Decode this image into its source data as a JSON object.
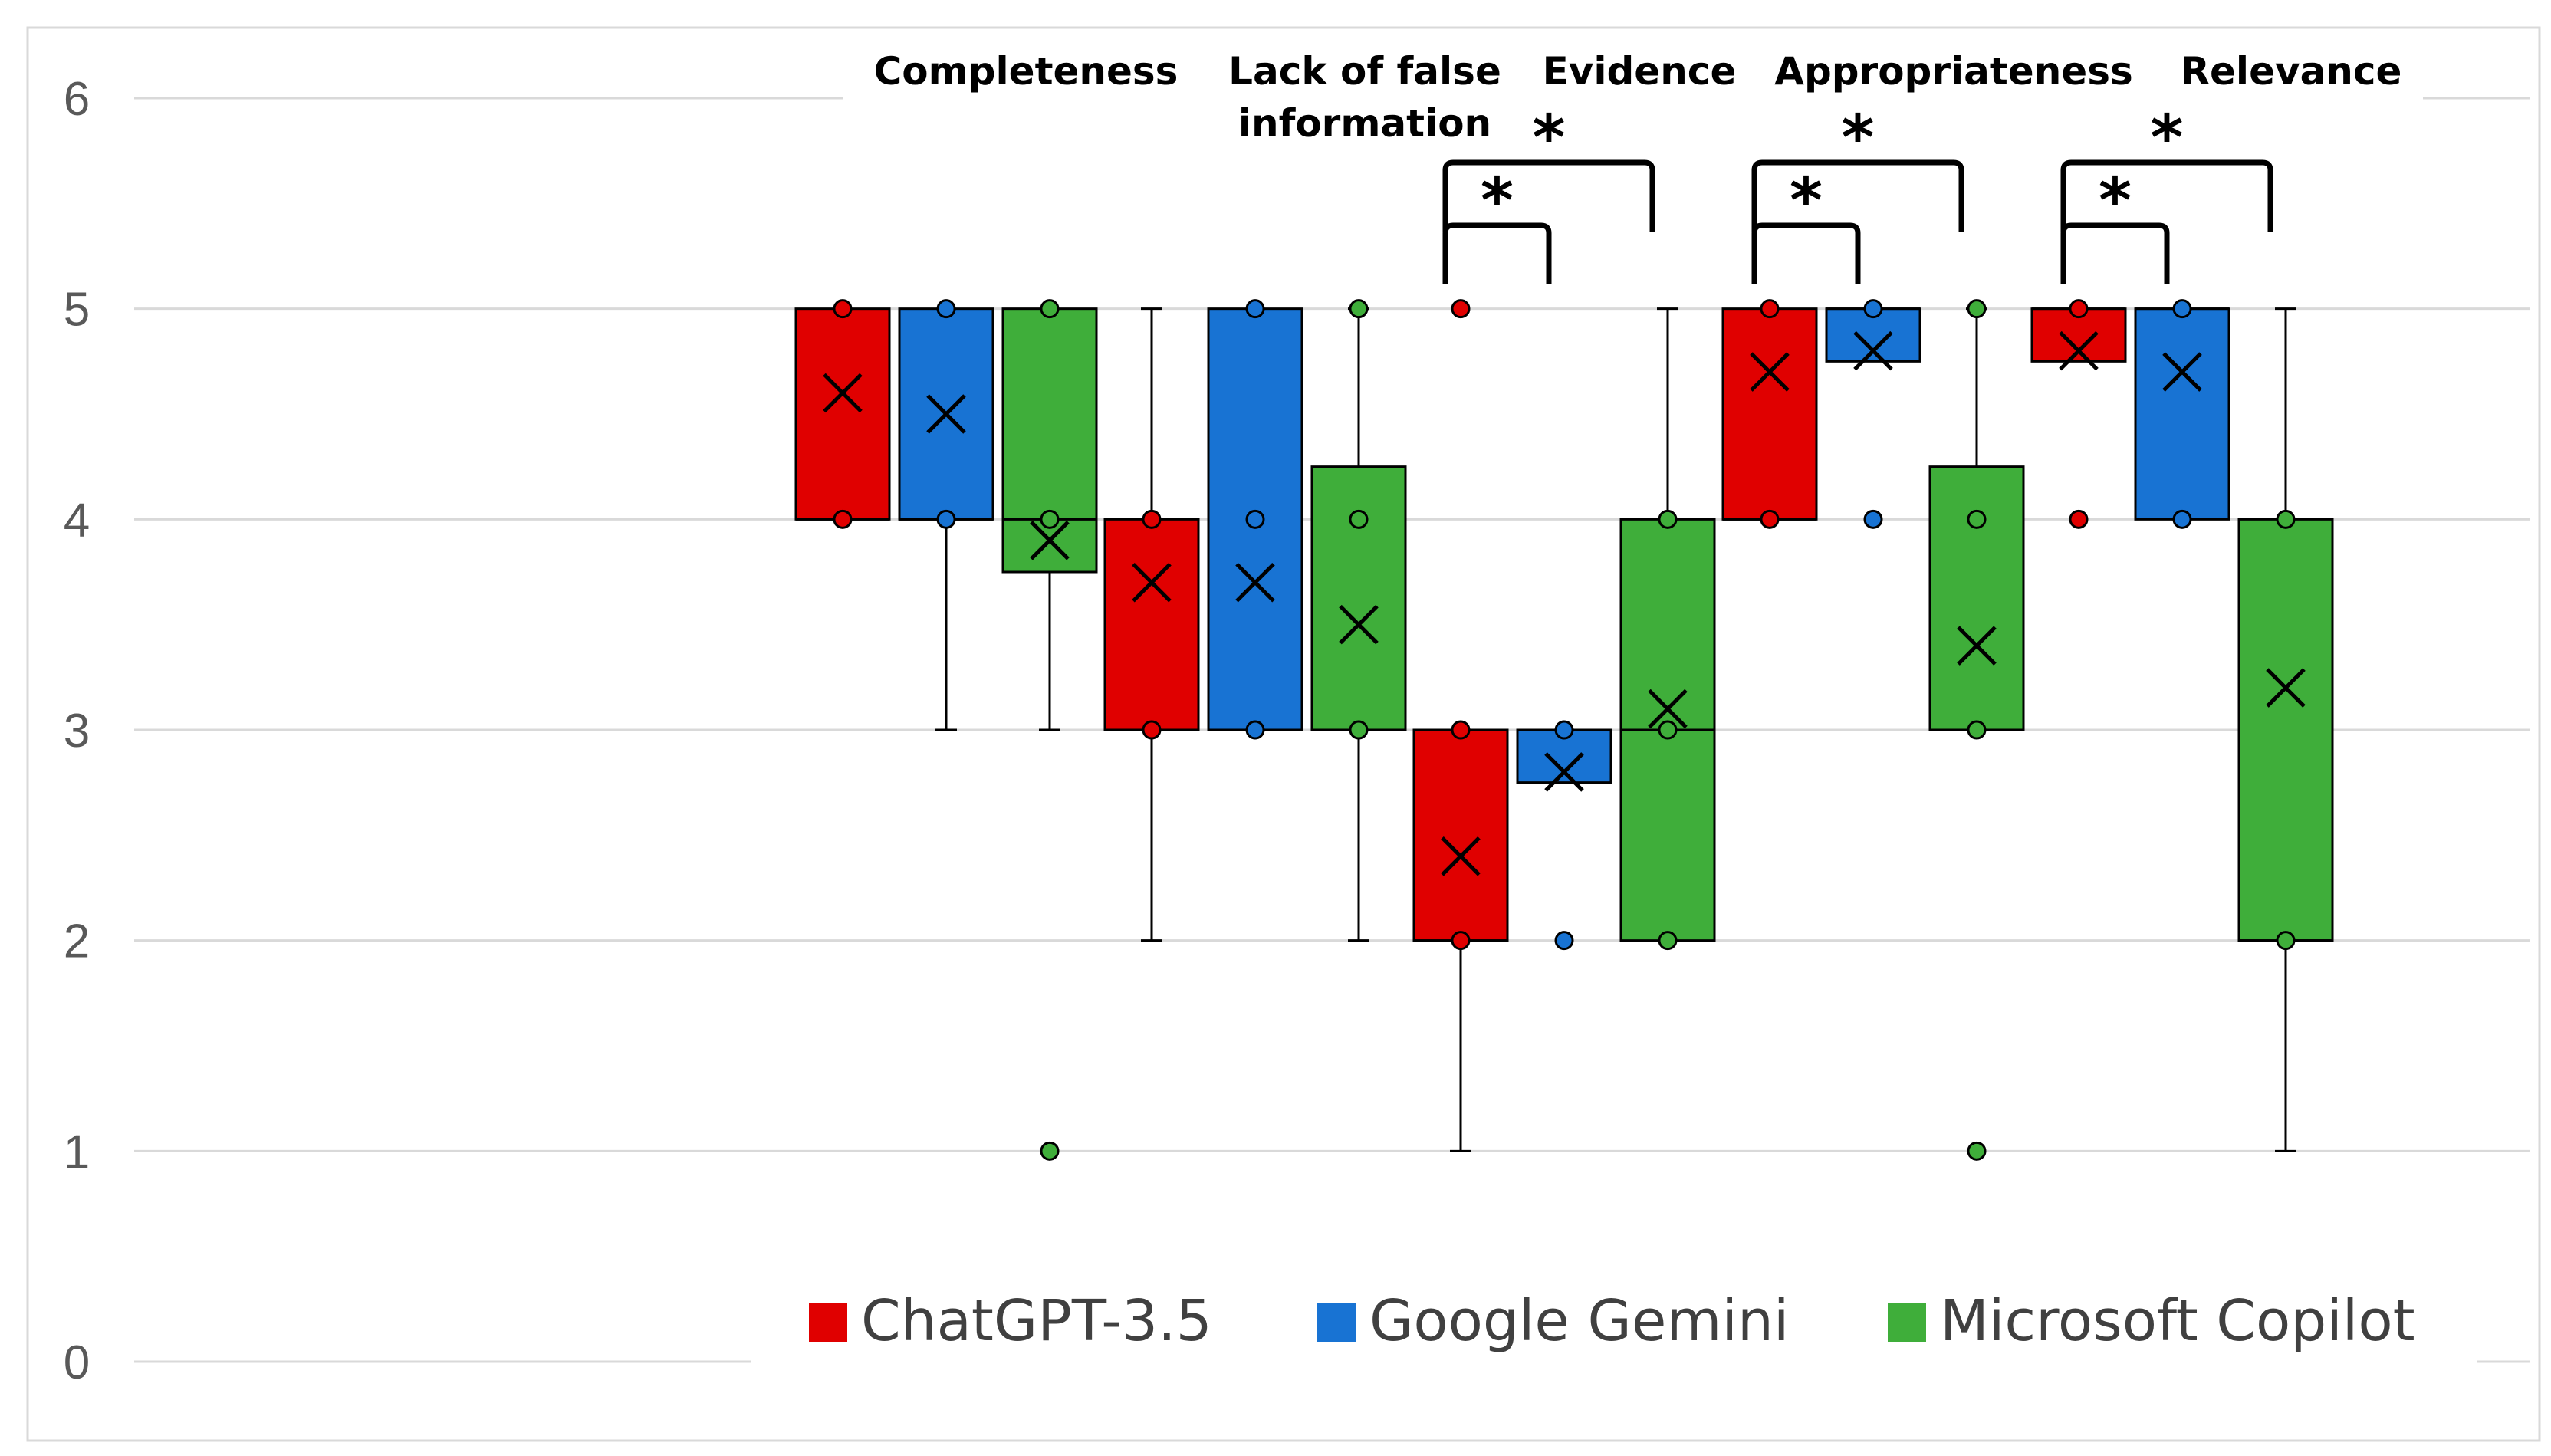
{
  "chart_data": {
    "type": "box",
    "title": "",
    "xlabel": "",
    "ylabel": "",
    "ylim": [
      0,
      6
    ],
    "yticks": [
      0,
      1,
      2,
      3,
      4,
      5,
      6
    ],
    "grid": true,
    "legend_position": "bottom",
    "categories": [
      "Completeness",
      "Lack of false information",
      "Evidence",
      "Appropriateness",
      "Relevance"
    ],
    "category_lines": [
      [
        "Completeness"
      ],
      [
        "Lack of false",
        "information"
      ],
      [
        "Evidence"
      ],
      [
        "Appropriateness"
      ],
      [
        "Relevance"
      ]
    ],
    "series": [
      {
        "name": "ChatGPT-3.5",
        "color": "#e00000",
        "boxes": [
          {
            "min": 4,
            "q1": 4,
            "median": 4,
            "q3": 5,
            "max": 5,
            "mean": 4.6,
            "points": [
              4,
              5
            ]
          },
          {
            "min": 2,
            "q1": 3,
            "median": 3,
            "q3": 4,
            "max": 5,
            "mean": 3.7,
            "points": [
              3,
              4
            ]
          },
          {
            "min": 1,
            "q1": 2,
            "median": 2,
            "q3": 3,
            "max": 3,
            "mean": 2.4,
            "points": [
              2,
              3,
              5
            ]
          },
          {
            "min": 4,
            "q1": 4,
            "median": 4,
            "q3": 5,
            "max": 5,
            "mean": 4.7,
            "points": [
              4,
              5
            ]
          },
          {
            "min": 4.75,
            "q1": 4.75,
            "median": 5,
            "q3": 5,
            "max": 5,
            "mean": 4.8,
            "points": [
              4,
              5
            ]
          }
        ]
      },
      {
        "name": "Google Gemini",
        "color": "#1873d3",
        "boxes": [
          {
            "min": 3,
            "q1": 4,
            "median": 4,
            "q3": 5,
            "max": 5,
            "mean": 4.5,
            "points": [
              4,
              5
            ]
          },
          {
            "min": 3,
            "q1": 3,
            "median": 3,
            "q3": 5,
            "max": 5,
            "mean": 3.7,
            "points": [
              3,
              4,
              5
            ]
          },
          {
            "min": 2.75,
            "q1": 2.75,
            "median": 3,
            "q3": 3,
            "max": 3,
            "mean": 2.8,
            "points": [
              2,
              3
            ]
          },
          {
            "min": 4.75,
            "q1": 4.75,
            "median": 5,
            "q3": 5,
            "max": 5,
            "mean": 4.8,
            "points": [
              4,
              5
            ]
          },
          {
            "min": 4,
            "q1": 4,
            "median": 5,
            "q3": 5,
            "max": 5,
            "mean": 4.7,
            "points": [
              4,
              5
            ]
          }
        ]
      },
      {
        "name": "Microsoft Copilot",
        "color": "#3fae3a",
        "boxes": [
          {
            "min": 3,
            "q1": 3.75,
            "median": 4,
            "q3": 5,
            "max": 5,
            "mean": 3.9,
            "points": [
              1,
              4,
              5
            ]
          },
          {
            "min": 2,
            "q1": 3,
            "median": 3,
            "q3": 4.25,
            "max": 5,
            "mean": 3.5,
            "points": [
              3,
              4,
              5
            ]
          },
          {
            "min": 2,
            "q1": 2,
            "median": 3,
            "q3": 4,
            "max": 5,
            "mean": 3.1,
            "points": [
              2,
              3,
              4
            ]
          },
          {
            "min": 3,
            "q1": 3,
            "median": 3,
            "q3": 4.25,
            "max": 5,
            "mean": 3.4,
            "points": [
              1,
              3,
              4,
              5
            ]
          },
          {
            "min": 1,
            "q1": 2,
            "median": 2,
            "q3": 4,
            "max": 5,
            "mean": 3.2,
            "points": [
              2,
              4
            ]
          }
        ]
      }
    ],
    "significance": [
      {
        "category": 2,
        "from": 0,
        "to": 1,
        "label": "*"
      },
      {
        "category": 2,
        "from": 0,
        "to": 2,
        "label": "*"
      },
      {
        "category": 3,
        "from": 0,
        "to": 1,
        "label": "*"
      },
      {
        "category": 3,
        "from": 0,
        "to": 2,
        "label": "*"
      },
      {
        "category": 4,
        "from": 0,
        "to": 1,
        "label": "*"
      },
      {
        "category": 4,
        "from": 0,
        "to": 2,
        "label": "*"
      }
    ]
  }
}
